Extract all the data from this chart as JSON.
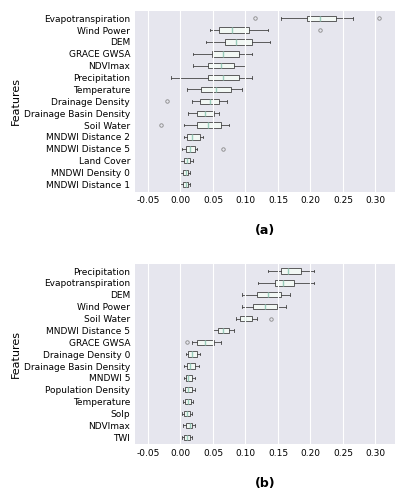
{
  "panel_a": {
    "title": "(a)",
    "ylabel": "Features",
    "xlim": [
      -0.07,
      0.33
    ],
    "xticks": [
      -0.05,
      0.0,
      0.05,
      0.1,
      0.15,
      0.2,
      0.25,
      0.3
    ],
    "xtick_labels": [
      "-0.05",
      "0.00",
      "0.05",
      "0.10",
      "0.15",
      "0.20",
      "0.25",
      "0.30"
    ],
    "features": [
      "Evapotranspiration",
      "Wind Power",
      "DEM",
      "GRACE GWSA",
      "NDVImax",
      "Precipitation",
      "Temperature",
      "Drainage Density",
      "Drainage Basin Density",
      "Soil Water",
      "MNDWI Distance 2",
      "MNDWI Distance 5",
      "Land Cover",
      "MNDWI Density 0",
      "MNDWI Distance 1"
    ],
    "boxes": [
      {
        "whislo": 0.155,
        "q1": 0.195,
        "med": 0.215,
        "q3": 0.24,
        "whishi": 0.265,
        "fliers": [
          0.115,
          0.305
        ]
      },
      {
        "whislo": 0.045,
        "q1": 0.06,
        "med": 0.08,
        "q3": 0.105,
        "whishi": 0.135,
        "fliers": [
          0.215
        ]
      },
      {
        "whislo": 0.04,
        "q1": 0.068,
        "med": 0.085,
        "q3": 0.11,
        "whishi": 0.138,
        "fliers": []
      },
      {
        "whislo": 0.02,
        "q1": 0.048,
        "med": 0.065,
        "q3": 0.09,
        "whishi": 0.11,
        "fliers": []
      },
      {
        "whislo": 0.02,
        "q1": 0.042,
        "med": 0.062,
        "q3": 0.082,
        "whishi": 0.1,
        "fliers": []
      },
      {
        "whislo": -0.015,
        "q1": 0.042,
        "med": 0.065,
        "q3": 0.09,
        "whishi": 0.11,
        "fliers": []
      },
      {
        "whislo": 0.01,
        "q1": 0.032,
        "med": 0.055,
        "q3": 0.078,
        "whishi": 0.095,
        "fliers": []
      },
      {
        "whislo": 0.018,
        "q1": 0.03,
        "med": 0.045,
        "q3": 0.06,
        "whishi": 0.072,
        "fliers": [
          -0.02
        ]
      },
      {
        "whislo": 0.012,
        "q1": 0.025,
        "med": 0.038,
        "q3": 0.052,
        "whishi": 0.06,
        "fliers": []
      },
      {
        "whislo": 0.005,
        "q1": 0.025,
        "med": 0.042,
        "q3": 0.062,
        "whishi": 0.075,
        "fliers": [
          -0.03
        ]
      },
      {
        "whislo": 0.005,
        "q1": 0.01,
        "med": 0.018,
        "q3": 0.03,
        "whishi": 0.035,
        "fliers": []
      },
      {
        "whislo": 0.002,
        "q1": 0.008,
        "med": 0.015,
        "q3": 0.022,
        "whishi": 0.025,
        "fliers": [
          0.065
        ]
      },
      {
        "whislo": 0.0,
        "q1": 0.005,
        "med": 0.01,
        "q3": 0.015,
        "whishi": 0.02,
        "fliers": []
      },
      {
        "whislo": 0.0,
        "q1": 0.004,
        "med": 0.008,
        "q3": 0.012,
        "whishi": 0.015,
        "fliers": []
      },
      {
        "whislo": 0.0,
        "q1": 0.004,
        "med": 0.008,
        "q3": 0.012,
        "whishi": 0.014,
        "fliers": []
      }
    ]
  },
  "panel_b": {
    "title": "(b)",
    "ylabel": "Features",
    "xlim": [
      -0.07,
      0.33
    ],
    "xticks": [
      -0.05,
      0.0,
      0.05,
      0.1,
      0.15,
      0.2,
      0.25,
      0.3
    ],
    "xtick_labels": [
      "-0.05",
      "0.00",
      "0.05",
      "0.10",
      "0.15",
      "0.20",
      "0.25",
      "0.30"
    ],
    "features": [
      "Precipitation",
      "Evapotranspiration",
      "DEM",
      "Wind Power",
      "Soil Water",
      "MNDWI Distance 5",
      "GRACE GWSA",
      "Drainage Density 0",
      "Drainage Basin Density",
      "MNDWI 5",
      "Population Density",
      "Temperature",
      "Solp",
      "NDVImax",
      "TWI"
    ],
    "boxes": [
      {
        "whislo": 0.135,
        "q1": 0.155,
        "med": 0.165,
        "q3": 0.185,
        "whishi": 0.205,
        "fliers": []
      },
      {
        "whislo": 0.12,
        "q1": 0.145,
        "med": 0.158,
        "q3": 0.175,
        "whishi": 0.205,
        "fliers": []
      },
      {
        "whislo": 0.095,
        "q1": 0.118,
        "med": 0.135,
        "q3": 0.155,
        "whishi": 0.168,
        "fliers": []
      },
      {
        "whislo": 0.095,
        "q1": 0.112,
        "med": 0.13,
        "q3": 0.148,
        "whishi": 0.162,
        "fliers": []
      },
      {
        "whislo": 0.085,
        "q1": 0.092,
        "med": 0.1,
        "q3": 0.11,
        "whishi": 0.118,
        "fliers": [
          0.14
        ]
      },
      {
        "whislo": 0.05,
        "q1": 0.058,
        "med": 0.065,
        "q3": 0.075,
        "whishi": 0.082,
        "fliers": []
      },
      {
        "whislo": 0.018,
        "q1": 0.025,
        "med": 0.038,
        "q3": 0.052,
        "whishi": 0.062,
        "fliers": [
          0.01
        ]
      },
      {
        "whislo": 0.008,
        "q1": 0.012,
        "med": 0.018,
        "q3": 0.025,
        "whishi": 0.03,
        "fliers": []
      },
      {
        "whislo": 0.006,
        "q1": 0.01,
        "med": 0.015,
        "q3": 0.022,
        "whishi": 0.028,
        "fliers": []
      },
      {
        "whislo": 0.005,
        "q1": 0.008,
        "med": 0.012,
        "q3": 0.018,
        "whishi": 0.022,
        "fliers": []
      },
      {
        "whislo": 0.004,
        "q1": 0.007,
        "med": 0.012,
        "q3": 0.018,
        "whishi": 0.022,
        "fliers": []
      },
      {
        "whislo": 0.004,
        "q1": 0.007,
        "med": 0.011,
        "q3": 0.016,
        "whishi": 0.02,
        "fliers": []
      },
      {
        "whislo": 0.003,
        "q1": 0.006,
        "med": 0.01,
        "q3": 0.014,
        "whishi": 0.018,
        "fliers": []
      },
      {
        "whislo": 0.004,
        "q1": 0.008,
        "med": 0.014,
        "q3": 0.018,
        "whishi": 0.022,
        "fliers": []
      },
      {
        "whislo": 0.002,
        "q1": 0.005,
        "med": 0.01,
        "q3": 0.015,
        "whishi": 0.018,
        "fliers": []
      }
    ]
  },
  "bg_color": "#E6E6EE",
  "box_facecolor": "#F2F8F4",
  "box_edgecolor": "#444444",
  "median_color": "#99CCBB",
  "whisker_color": "#444444",
  "flier_color": "#888888",
  "grid_color": "#FFFFFF",
  "ylabel_fontsize": 8,
  "tick_fontsize": 6.5,
  "title_fontsize": 9,
  "feature_fontsize": 6.5
}
